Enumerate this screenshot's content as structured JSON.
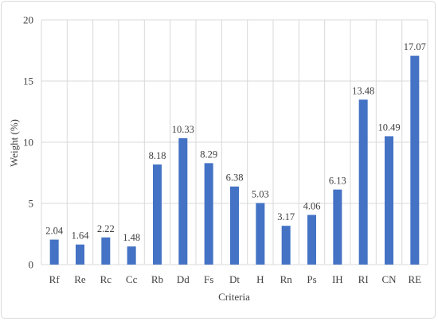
{
  "chart_data": {
    "type": "bar",
    "title": "",
    "xlabel": "Criteria",
    "ylabel": "Weight (%)",
    "ylim": [
      0,
      20
    ],
    "yticks": [
      0,
      5,
      10,
      15,
      20
    ],
    "grid": true,
    "bar_color": "#4472C4",
    "categories": [
      "Rf",
      "Re",
      "Rc",
      "Cc",
      "Rb",
      "Dd",
      "Fs",
      "Dt",
      "H",
      "Rn",
      "Ps",
      "IH",
      "RI",
      "CN",
      "RE"
    ],
    "values": [
      2.04,
      1.64,
      2.22,
      1.48,
      8.18,
      10.33,
      8.29,
      6.38,
      5.03,
      3.17,
      4.06,
      6.13,
      13.48,
      10.49,
      17.07
    ],
    "value_labels": [
      "2.04",
      "1.64",
      "2.22",
      "1.48",
      "8.18",
      "10.33",
      "8.29",
      "6.38",
      "5.03",
      "3.17",
      "4.06",
      "6.13",
      "13.48",
      "10.49",
      "17.07"
    ]
  }
}
